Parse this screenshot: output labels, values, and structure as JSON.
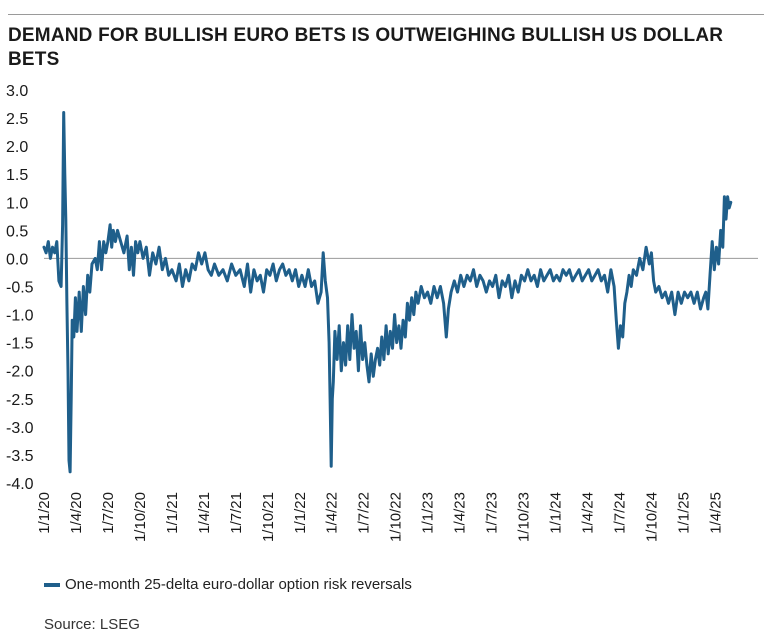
{
  "title": "DEMAND FOR BULLISH EURO BETS IS OUTWEIGHING BULLISH US DOLLAR BETS",
  "source": "Source: LSEG",
  "colors": {
    "line": "#1f5f8b",
    "zero": "#9a9a9a",
    "text": "#1a1a1a"
  },
  "chart_data": {
    "type": "line",
    "title": "DEMAND FOR BULLISH EURO BETS IS OUTWEIGHING BULLISH US DOLLAR BETS",
    "xlabel": "",
    "ylabel": "",
    "ylim": [
      -4.0,
      3.0
    ],
    "yticks": [
      "3.0",
      "2.5",
      "2.0",
      "1.5",
      "1.0",
      "0.5",
      "0.0",
      "-0.5",
      "-1.0",
      "-1.5",
      "-2.0",
      "-2.5",
      "-3.0",
      "-3.5",
      "-4.0"
    ],
    "xlim": [
      0,
      67
    ],
    "xticks": [
      {
        "label": "1/1/20",
        "month": 0
      },
      {
        "label": "1/4/20",
        "month": 3
      },
      {
        "label": "1/7/20",
        "month": 6
      },
      {
        "label": "1/10/20",
        "month": 9
      },
      {
        "label": "1/1/21",
        "month": 12
      },
      {
        "label": "1/4/21",
        "month": 15
      },
      {
        "label": "1/7/21",
        "month": 18
      },
      {
        "label": "1/10/21",
        "month": 21
      },
      {
        "label": "1/1/22",
        "month": 24
      },
      {
        "label": "1/4/22",
        "month": 27
      },
      {
        "label": "1/7/22",
        "month": 30
      },
      {
        "label": "1/10/22",
        "month": 33
      },
      {
        "label": "1/1/23",
        "month": 36
      },
      {
        "label": "1/4/23",
        "month": 39
      },
      {
        "label": "1/7/23",
        "month": 42
      },
      {
        "label": "1/10/23",
        "month": 45
      },
      {
        "label": "1/1/24",
        "month": 48
      },
      {
        "label": "1/4/24",
        "month": 51
      },
      {
        "label": "1/7/24",
        "month": 54
      },
      {
        "label": "1/10/24",
        "month": 57
      },
      {
        "label": "1/1/25",
        "month": 60
      },
      {
        "label": "1/4/25",
        "month": 63
      }
    ],
    "series": [
      {
        "name": "One-month 25-delta euro-dollar option risk reversals",
        "x_unit": "months since 1 Jan 2020",
        "points": [
          [
            0.0,
            0.2
          ],
          [
            0.2,
            0.1
          ],
          [
            0.4,
            0.3
          ],
          [
            0.6,
            0.0
          ],
          [
            0.8,
            0.2
          ],
          [
            1.0,
            0.1
          ],
          [
            1.2,
            0.3
          ],
          [
            1.4,
            -0.4
          ],
          [
            1.6,
            -0.5
          ],
          [
            1.75,
            0.6
          ],
          [
            1.85,
            2.6
          ],
          [
            1.95,
            1.5
          ],
          [
            2.05,
            0.7
          ],
          [
            2.15,
            -0.8
          ],
          [
            2.25,
            -2.0
          ],
          [
            2.35,
            -3.6
          ],
          [
            2.45,
            -3.8
          ],
          [
            2.55,
            -2.5
          ],
          [
            2.65,
            -1.1
          ],
          [
            2.8,
            -1.4
          ],
          [
            2.95,
            -0.7
          ],
          [
            3.1,
            -1.3
          ],
          [
            3.3,
            -0.6
          ],
          [
            3.5,
            -1.3
          ],
          [
            3.7,
            -0.5
          ],
          [
            3.9,
            -1.0
          ],
          [
            4.1,
            -0.3
          ],
          [
            4.3,
            -0.6
          ],
          [
            4.5,
            -0.1
          ],
          [
            4.8,
            0.0
          ],
          [
            5.0,
            -0.2
          ],
          [
            5.2,
            0.3
          ],
          [
            5.4,
            -0.2
          ],
          [
            5.6,
            0.3
          ],
          [
            5.8,
            0.1
          ],
          [
            6.0,
            0.3
          ],
          [
            6.2,
            0.6
          ],
          [
            6.35,
            0.2
          ],
          [
            6.5,
            0.5
          ],
          [
            6.7,
            0.3
          ],
          [
            6.9,
            0.5
          ],
          [
            7.2,
            0.3
          ],
          [
            7.5,
            0.1
          ],
          [
            7.8,
            0.4
          ],
          [
            8.0,
            -0.2
          ],
          [
            8.2,
            0.2
          ],
          [
            8.4,
            -0.3
          ],
          [
            8.6,
            0.3
          ],
          [
            8.8,
            0.1
          ],
          [
            9.0,
            0.3
          ],
          [
            9.3,
            0.0
          ],
          [
            9.6,
            0.2
          ],
          [
            9.9,
            -0.3
          ],
          [
            10.2,
            0.1
          ],
          [
            10.5,
            -0.1
          ],
          [
            10.8,
            0.2
          ],
          [
            11.1,
            -0.2
          ],
          [
            11.4,
            0.0
          ],
          [
            11.7,
            -0.3
          ],
          [
            12.0,
            -0.2
          ],
          [
            12.4,
            -0.4
          ],
          [
            12.7,
            -0.1
          ],
          [
            13.0,
            -0.5
          ],
          [
            13.3,
            -0.2
          ],
          [
            13.6,
            -0.4
          ],
          [
            13.9,
            -0.1
          ],
          [
            14.2,
            -0.2
          ],
          [
            14.5,
            0.1
          ],
          [
            14.8,
            -0.1
          ],
          [
            15.1,
            0.1
          ],
          [
            15.4,
            -0.2
          ],
          [
            15.7,
            -0.3
          ],
          [
            16.0,
            -0.1
          ],
          [
            16.4,
            -0.3
          ],
          [
            16.8,
            -0.2
          ],
          [
            17.2,
            -0.4
          ],
          [
            17.6,
            -0.1
          ],
          [
            18.0,
            -0.3
          ],
          [
            18.4,
            -0.2
          ],
          [
            18.8,
            -0.5
          ],
          [
            19.1,
            -0.1
          ],
          [
            19.4,
            -0.6
          ],
          [
            19.7,
            -0.2
          ],
          [
            20.0,
            -0.4
          ],
          [
            20.3,
            -0.3
          ],
          [
            20.6,
            -0.6
          ],
          [
            20.9,
            -0.2
          ],
          [
            21.2,
            -0.3
          ],
          [
            21.5,
            -0.1
          ],
          [
            21.8,
            -0.4
          ],
          [
            22.1,
            -0.2
          ],
          [
            22.4,
            -0.1
          ],
          [
            22.7,
            -0.3
          ],
          [
            23.0,
            -0.2
          ],
          [
            23.3,
            -0.4
          ],
          [
            23.6,
            -0.2
          ],
          [
            23.9,
            -0.5
          ],
          [
            24.2,
            -0.3
          ],
          [
            24.5,
            -0.5
          ],
          [
            24.8,
            -0.2
          ],
          [
            25.1,
            -0.5
          ],
          [
            25.4,
            -0.4
          ],
          [
            25.7,
            -0.8
          ],
          [
            26.0,
            -0.6
          ],
          [
            26.2,
            0.1
          ],
          [
            26.4,
            -0.4
          ],
          [
            26.6,
            -0.7
          ],
          [
            26.75,
            -1.5
          ],
          [
            26.85,
            -2.5
          ],
          [
            26.95,
            -3.7
          ],
          [
            27.05,
            -2.5
          ],
          [
            27.15,
            -2.2
          ],
          [
            27.3,
            -1.3
          ],
          [
            27.5,
            -1.8
          ],
          [
            27.7,
            -1.2
          ],
          [
            27.9,
            -2.0
          ],
          [
            28.1,
            -1.5
          ],
          [
            28.3,
            -1.9
          ],
          [
            28.5,
            -1.2
          ],
          [
            28.7,
            -1.8
          ],
          [
            28.9,
            -1.0
          ],
          [
            29.1,
            -1.6
          ],
          [
            29.3,
            -1.3
          ],
          [
            29.5,
            -2.0
          ],
          [
            29.7,
            -1.2
          ],
          [
            29.9,
            -1.8
          ],
          [
            30.1,
            -1.5
          ],
          [
            30.3,
            -1.9
          ],
          [
            30.5,
            -2.2
          ],
          [
            30.7,
            -1.7
          ],
          [
            30.9,
            -2.1
          ],
          [
            31.1,
            -1.8
          ],
          [
            31.3,
            -1.6
          ],
          [
            31.5,
            -1.9
          ],
          [
            31.7,
            -1.4
          ],
          [
            31.9,
            -1.8
          ],
          [
            32.1,
            -1.2
          ],
          [
            32.3,
            -1.7
          ],
          [
            32.5,
            -1.3
          ],
          [
            32.7,
            -1.6
          ],
          [
            32.9,
            -1.0
          ],
          [
            33.1,
            -1.5
          ],
          [
            33.3,
            -1.2
          ],
          [
            33.5,
            -1.6
          ],
          [
            33.7,
            -1.1
          ],
          [
            33.9,
            -1.4
          ],
          [
            34.1,
            -0.8
          ],
          [
            34.3,
            -1.1
          ],
          [
            34.5,
            -0.7
          ],
          [
            34.7,
            -1.0
          ],
          [
            34.9,
            -0.6
          ],
          [
            35.1,
            -0.8
          ],
          [
            35.4,
            -0.5
          ],
          [
            35.7,
            -0.7
          ],
          [
            36.0,
            -0.6
          ],
          [
            36.3,
            -0.8
          ],
          [
            36.6,
            -0.5
          ],
          [
            36.9,
            -0.7
          ],
          [
            37.2,
            -0.5
          ],
          [
            37.5,
            -0.8
          ],
          [
            37.75,
            -1.4
          ],
          [
            37.95,
            -0.9
          ],
          [
            38.2,
            -0.6
          ],
          [
            38.5,
            -0.4
          ],
          [
            38.8,
            -0.6
          ],
          [
            39.1,
            -0.3
          ],
          [
            39.4,
            -0.5
          ],
          [
            39.7,
            -0.3
          ],
          [
            40.0,
            -0.4
          ],
          [
            40.3,
            -0.2
          ],
          [
            40.6,
            -0.5
          ],
          [
            40.9,
            -0.3
          ],
          [
            41.2,
            -0.4
          ],
          [
            41.5,
            -0.6
          ],
          [
            41.8,
            -0.4
          ],
          [
            42.1,
            -0.5
          ],
          [
            42.4,
            -0.3
          ],
          [
            42.7,
            -0.7
          ],
          [
            43.0,
            -0.4
          ],
          [
            43.3,
            -0.5
          ],
          [
            43.6,
            -0.3
          ],
          [
            43.9,
            -0.7
          ],
          [
            44.2,
            -0.4
          ],
          [
            44.5,
            -0.6
          ],
          [
            44.8,
            -0.3
          ],
          [
            45.1,
            -0.4
          ],
          [
            45.4,
            -0.2
          ],
          [
            45.7,
            -0.4
          ],
          [
            46.0,
            -0.3
          ],
          [
            46.3,
            -0.5
          ],
          [
            46.6,
            -0.2
          ],
          [
            46.9,
            -0.4
          ],
          [
            47.2,
            -0.3
          ],
          [
            47.5,
            -0.2
          ],
          [
            47.8,
            -0.4
          ],
          [
            48.1,
            -0.3
          ],
          [
            48.4,
            -0.4
          ],
          [
            48.7,
            -0.2
          ],
          [
            49.0,
            -0.3
          ],
          [
            49.3,
            -0.2
          ],
          [
            49.6,
            -0.4
          ],
          [
            49.9,
            -0.3
          ],
          [
            50.2,
            -0.2
          ],
          [
            50.5,
            -0.4
          ],
          [
            50.8,
            -0.3
          ],
          [
            51.1,
            -0.2
          ],
          [
            51.4,
            -0.4
          ],
          [
            51.7,
            -0.3
          ],
          [
            52.0,
            -0.2
          ],
          [
            52.3,
            -0.4
          ],
          [
            52.6,
            -0.3
          ],
          [
            52.9,
            -0.6
          ],
          [
            53.2,
            -0.2
          ],
          [
            53.5,
            -0.5
          ],
          [
            53.7,
            -1.1
          ],
          [
            53.9,
            -1.6
          ],
          [
            54.1,
            -1.2
          ],
          [
            54.3,
            -1.4
          ],
          [
            54.5,
            -0.8
          ],
          [
            54.7,
            -0.6
          ],
          [
            54.9,
            -0.3
          ],
          [
            55.1,
            -0.5
          ],
          [
            55.3,
            -0.2
          ],
          [
            55.6,
            -0.3
          ],
          [
            55.9,
            0.0
          ],
          [
            56.2,
            -0.2
          ],
          [
            56.5,
            0.2
          ],
          [
            56.8,
            -0.1
          ],
          [
            57.0,
            0.1
          ],
          [
            57.2,
            -0.4
          ],
          [
            57.4,
            -0.6
          ],
          [
            57.7,
            -0.5
          ],
          [
            58.0,
            -0.7
          ],
          [
            58.3,
            -0.6
          ],
          [
            58.6,
            -0.8
          ],
          [
            58.9,
            -0.6
          ],
          [
            59.2,
            -1.0
          ],
          [
            59.5,
            -0.6
          ],
          [
            59.8,
            -0.8
          ],
          [
            60.1,
            -0.6
          ],
          [
            60.4,
            -0.7
          ],
          [
            60.7,
            -0.6
          ],
          [
            61.0,
            -0.8
          ],
          [
            61.3,
            -0.6
          ],
          [
            61.6,
            -0.9
          ],
          [
            61.9,
            -0.7
          ],
          [
            62.1,
            -0.6
          ],
          [
            62.3,
            -0.9
          ],
          [
            62.5,
            -0.3
          ],
          [
            62.7,
            0.3
          ],
          [
            62.9,
            -0.2
          ],
          [
            63.1,
            0.2
          ],
          [
            63.3,
            -0.1
          ],
          [
            63.5,
            0.5
          ],
          [
            63.7,
            0.2
          ],
          [
            63.85,
            1.1
          ],
          [
            64.0,
            0.7
          ],
          [
            64.15,
            1.1
          ],
          [
            64.3,
            0.9
          ],
          [
            64.45,
            1.0
          ]
        ]
      }
    ],
    "legend": [
      "One-month 25-delta euro-dollar option risk reversals"
    ],
    "legend_position": "bottom-left",
    "grid": false,
    "zero_line": true
  }
}
